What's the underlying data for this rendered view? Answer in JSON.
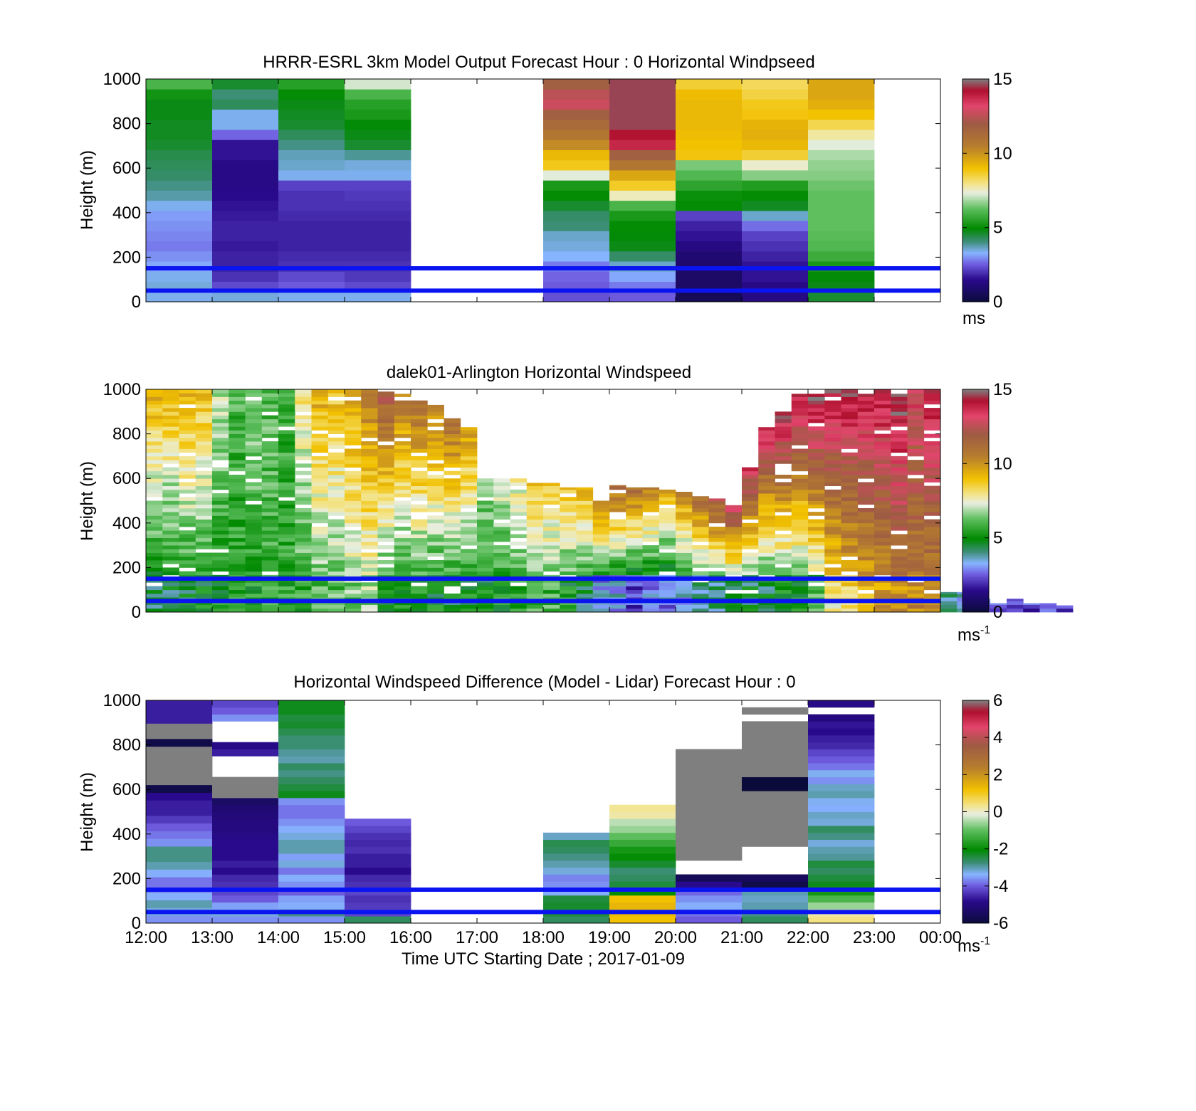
{
  "figure": {
    "xlabel": "Time UTC  Starting Date ; 2017-01-09",
    "x_tick_labels": [
      "12:00",
      "13:00",
      "14:00",
      "15:00",
      "16:00",
      "17:00",
      "18:00",
      "19:00",
      "20:00",
      "21:00",
      "22:00",
      "23:00",
      "00:00"
    ]
  },
  "colors": {
    "reference_lines": "#0a14f0",
    "colormap_stops": [
      {
        "f": 0.0,
        "c": "#0b0b3b"
      },
      {
        "f": 0.1,
        "c": "#2a0a8c"
      },
      {
        "f": 0.17,
        "c": "#6f5de0"
      },
      {
        "f": 0.22,
        "c": "#87b4ff"
      },
      {
        "f": 0.27,
        "c": "#3f8e7c"
      },
      {
        "f": 0.33,
        "c": "#008a00"
      },
      {
        "f": 0.42,
        "c": "#5fbf5f"
      },
      {
        "f": 0.49,
        "c": "#e8eee0"
      },
      {
        "f": 0.53,
        "c": "#f3e48a"
      },
      {
        "f": 0.6,
        "c": "#f2c100"
      },
      {
        "f": 0.7,
        "c": "#b67d2e"
      },
      {
        "f": 0.8,
        "c": "#9e5b44"
      },
      {
        "f": 0.88,
        "c": "#e2456c"
      },
      {
        "f": 0.95,
        "c": "#b0102e"
      },
      {
        "f": 1.0,
        "c": "#7f7f7f"
      }
    ]
  },
  "chart_data": [
    {
      "type": "heatmap",
      "title": "HRRR-ESRL 3km Model Output   Forecast Hour : 0 Horizontal Windpseed",
      "xlabel": "",
      "ylabel": "Height (m)",
      "x_range": [
        "12:00",
        "00:00"
      ],
      "ylim": [
        0,
        1000
      ],
      "y_ticks": [
        0,
        200,
        400,
        600,
        800,
        1000
      ],
      "colorbar": {
        "range": [
          0,
          15
        ],
        "ticks": [
          0,
          5,
          10,
          15
        ],
        "unit": "ms",
        "unit_sup": ""
      },
      "reference_lines_m": [
        150,
        50
      ],
      "hourly_profiles": [
        {
          "start": "12:00",
          "values": [
            3.4,
            3.5,
            3.4,
            3.2,
            3.0,
            2.8,
            2.9,
            3.0,
            3.1,
            3.4,
            3.8,
            4.0,
            4.2,
            4.3,
            4.4,
            4.6,
            4.7,
            4.7,
            4.8,
            4.8,
            5.2,
            6.0
          ]
        },
        {
          "start": "13:00",
          "values": [
            3.5,
            2.3,
            2.0,
            1.8,
            1.8,
            1.7,
            1.8,
            1.8,
            1.7,
            1.6,
            1.5,
            1.4,
            1.4,
            1.4,
            1.6,
            1.6,
            2.6,
            3.4,
            3.4,
            4.3,
            4.1,
            4.6
          ]
        },
        {
          "start": "14:00",
          "values": [
            3.4,
            2.5,
            2.3,
            2.0,
            1.9,
            1.8,
            1.8,
            1.8,
            1.9,
            2.0,
            2.0,
            2.2,
            3.4,
            3.6,
            3.7,
            4.0,
            4.3,
            4.6,
            4.7,
            4.8,
            5.0,
            5.5
          ]
        },
        {
          "start": "15:00",
          "values": [
            3.4,
            2.3,
            2.1,
            2.0,
            1.9,
            1.8,
            1.8,
            1.8,
            1.9,
            2.0,
            2.1,
            2.2,
            3.4,
            3.5,
            3.9,
            4.6,
            4.8,
            4.9,
            5.3,
            5.5,
            6.0,
            7.2
          ]
        },
        null,
        null,
        {
          "start": "18:00",
          "values": [
            2.4,
            2.5,
            2.6,
            2.8,
            3.3,
            3.5,
            3.6,
            4.1,
            4.2,
            4.6,
            5.0,
            5.3,
            7.3,
            8.8,
            9.2,
            10.2,
            10.8,
            11.3,
            11.8,
            12.8,
            12.5,
            11.8
          ]
        },
        {
          "start": "19:00",
          "values": [
            2.5,
            2.8,
            3.2,
            3.6,
            4.2,
            4.8,
            4.9,
            5.0,
            5.3,
            6.0,
            7.6,
            8.7,
            9.6,
            10.8,
            11.8,
            13.8,
            14.2,
            14.6,
            14.6,
            14.6,
            14.6,
            14.6
          ]
        },
        {
          "start": "20:00",
          "values": [
            0.5,
            0.8,
            0.8,
            0.9,
            1.0,
            1.3,
            1.6,
            1.8,
            2.2,
            5.0,
            5.1,
            5.6,
            6.1,
            6.5,
            8.9,
            9.0,
            9.1,
            9.2,
            9.2,
            9.2,
            9.1,
            8.6
          ]
        },
        {
          "start": "21:00",
          "values": [
            1.3,
            1.4,
            1.6,
            1.6,
            1.8,
            2.0,
            2.2,
            2.7,
            3.6,
            4.7,
            5.0,
            5.4,
            6.6,
            7.5,
            8.6,
            9.2,
            9.4,
            9.3,
            8.9,
            8.8,
            8.5,
            8.3
          ]
        },
        {
          "start": "22:00",
          "values": [
            4.6,
            4.8,
            4.9,
            5.3,
            5.8,
            6.1,
            6.2,
            6.3,
            6.3,
            6.3,
            6.3,
            6.4,
            6.6,
            6.7,
            6.9,
            7.3,
            7.8,
            8.4,
            9.0,
            9.4,
            9.6,
            9.6
          ]
        },
        null
      ]
    },
    {
      "type": "heatmap",
      "title": "dalek01-Arlington  Horizontal Windspeed",
      "xlabel": "",
      "ylabel": "Height (m)",
      "x_range": [
        "12:00",
        "00:00"
      ],
      "ylim": [
        0,
        1000
      ],
      "y_ticks": [
        0,
        200,
        400,
        600,
        800,
        1000
      ],
      "colorbar": {
        "range": [
          0,
          15
        ],
        "ticks": [
          0,
          5,
          10,
          15
        ],
        "unit": "ms",
        "unit_sup": "-1"
      },
      "reference_lines_m": [
        150,
        50
      ],
      "segment_minutes": 15,
      "tops_m": [
        1000,
        1000,
        1000,
        1000,
        1000,
        1000,
        1000,
        1000,
        1000,
        1000,
        1000,
        1000,
        1000,
        1000,
        990,
        980,
        950,
        930,
        870,
        830,
        600,
        600,
        600,
        580,
        580,
        560,
        560,
        500,
        570,
        560,
        560,
        560,
        540,
        520,
        510,
        480,
        650,
        830,
        900,
        980,
        980,
        1000,
        1000,
        980,
        1000,
        980,
        1000,
        1000,
        90,
        90,
        60,
        40,
        60,
        40,
        40,
        30
      ],
      "low_speed_m_s": [
        4.5,
        4.6,
        4.8,
        5.0,
        5.2,
        5.5,
        5.4,
        5.8,
        5.6,
        5.7,
        5.9,
        6.1,
        6.5,
        6.8,
        4.9,
        5.0,
        5.2,
        5.0,
        4.8,
        5.0,
        5.0,
        5.3,
        5.8,
        5.9,
        6.0,
        5.2,
        4.5,
        3.0,
        3.1,
        2.5,
        2.8,
        3.0,
        3.6,
        4.0,
        4.2,
        4.4,
        4.6,
        4.5,
        5.0,
        5.3,
        6.0,
        8.0,
        8.6,
        9.2,
        9.7,
        10.2,
        10.4,
        10.2,
        3.6,
        3.2,
        2.6,
        2.2,
        2.4,
        2.1,
        2.2,
        2.0
      ],
      "high_speed_m_s": [
        9.6,
        9.3,
        9.7,
        9.2,
        7.2,
        6.0,
        6.8,
        6.2,
        5.8,
        8.0,
        9.6,
        9.1,
        9.8,
        10.5,
        12.0,
        10.8,
        11.0,
        10.5,
        11.0,
        9.8,
        7.0,
        7.5,
        7.8,
        8.8,
        8.6,
        9.0,
        9.4,
        10.8,
        11.5,
        11.2,
        10.6,
        9.8,
        10.5,
        11.5,
        12.2,
        13.0,
        13.6,
        14.0,
        14.5,
        14.2,
        14.8,
        14.3,
        14.6,
        14.3,
        14.4,
        14.8,
        13.2,
        14.4,
        4.0,
        3.6,
        3.0,
        2.8,
        2.6,
        2.4,
        2.3,
        2.0
      ]
    },
    {
      "type": "heatmap",
      "title": "Horizontal Windspeed Difference (Model - Lidar) Forecast Hour : 0",
      "xlabel": "Time UTC  Starting Date ; 2017-01-09",
      "ylabel": "Height (m)",
      "x_range": [
        "12:00",
        "00:00"
      ],
      "ylim": [
        0,
        1000
      ],
      "y_ticks": [
        0,
        200,
        400,
        600,
        800,
        1000
      ],
      "colorbar": {
        "range": [
          -6,
          6
        ],
        "ticks": [
          -6,
          -4,
          -2,
          0,
          2,
          4,
          6
        ],
        "unit": "ms",
        "unit_sup": "-1"
      },
      "reference_lines_m": [
        150,
        50
      ],
      "hourly_profiles": [
        {
          "start": "12:00",
          "values": [
            -3.6,
            -3.2,
            -3.0,
            -3.4,
            -3.8,
            -3.8,
            -3.4,
            -3.0,
            -2.8,
            -2.8,
            -3.6,
            -3.8,
            -4.0,
            -4.3,
            -4.6,
            -4.6,
            -4.8,
            -5.8,
            6.0,
            6.0,
            6.0,
            6.0,
            6.0,
            -5.8,
            6.0,
            6.0,
            -4.6,
            -4.6,
            -4.6
          ]
        },
        {
          "start": "13:00",
          "values": [
            -3.6,
            -3.2,
            -3.5,
            -4.0,
            -4.2,
            -4.4,
            -4.5,
            -4.8,
            -4.6,
            -4.8,
            -4.8,
            -4.8,
            -4.9,
            -5.0,
            -5.0,
            -5.1,
            -5.2,
            -5.4,
            6.0,
            6.0,
            6.0,
            null,
            null,
            null,
            -4.6,
            -4.9,
            null,
            null,
            null,
            -3.6,
            -4.0,
            -4.2
          ]
        },
        {
          "start": "14:00",
          "values": [
            -3.6,
            -2.8,
            -3.4,
            -3.5,
            -4.0,
            -3.6,
            -3.4,
            -3.8,
            -3.2,
            -3.5,
            -3.0,
            -3.0,
            -3.2,
            -3.4,
            -3.6,
            -3.8,
            -3.8,
            -3.6,
            -2.2,
            -2.4,
            -2.6,
            -2.8,
            -2.6,
            -3.0,
            -2.9,
            -2.7,
            -2.7,
            -2.5,
            -2.3,
            -2.4,
            -2.2,
            -2.2
          ]
        },
        {
          "start": "15:00",
          "values": [
            -2.6,
            -4.2,
            -4.3,
            -4.4,
            -4.2,
            -4.4,
            -4.5,
            -4.8,
            -4.6,
            -4.6,
            -4.4,
            -4.5,
            -4.4,
            -4.2,
            -4.0,
            null,
            null,
            null,
            null,
            null,
            null,
            null,
            null,
            null,
            null,
            null,
            null,
            null,
            null,
            null,
            null,
            null
          ]
        },
        null,
        null,
        {
          "start": "18:00",
          "values": [
            -2.6,
            -2.4,
            -2.3,
            -2.4,
            -3.4,
            -3.6,
            -3.7,
            -3.2,
            -3.0,
            -2.8,
            -2.6,
            -2.5,
            -3.1,
            null,
            null,
            null,
            null,
            null,
            null,
            null,
            null,
            null,
            null,
            null,
            null,
            null,
            null,
            null,
            null,
            null,
            null,
            null
          ]
        },
        {
          "start": "19:00",
          "values": [
            1.2,
            1.3,
            1.4,
            1.2,
            -2.0,
            -2.4,
            -2.6,
            -2.7,
            -2.3,
            -2.0,
            -1.8,
            -1.4,
            -1.0,
            -0.6,
            -0.4,
            0.2,
            0.3,
            null,
            null,
            null,
            null,
            null,
            null,
            null,
            null,
            null,
            null,
            null,
            null,
            null,
            null,
            null
          ]
        },
        {
          "start": "20:00",
          "values": [
            -4.0,
            -3.8,
            -3.4,
            -3.6,
            -3.9,
            -4.8,
            -5.6,
            null,
            null,
            6.0,
            6.0,
            6.0,
            6.0,
            6.0,
            6.0,
            6.0,
            6.0,
            6.0,
            6.0,
            6.0,
            6.0,
            6.0,
            6.0,
            6.0,
            6.0,
            null,
            null,
            null,
            null,
            null,
            null,
            null
          ]
        },
        {
          "start": "21:00",
          "values": [
            -2.6,
            -2.8,
            -3.0,
            -3.1,
            -3.0,
            -5.8,
            -5.5,
            null,
            null,
            null,
            null,
            6.0,
            6.0,
            6.0,
            6.0,
            6.0,
            6.0,
            6.0,
            6.0,
            -6.0,
            -6.0,
            6.0,
            6.0,
            6.0,
            6.0,
            6.0,
            6.0,
            6.0,
            6.0,
            null,
            6.0,
            null
          ]
        },
        {
          "start": "22:00",
          "values": [
            0.4,
            0.2,
            -0.6,
            -1.2,
            -1.8,
            -2.2,
            -2.4,
            -2.6,
            -2.4,
            -2.9,
            -3.0,
            -3.2,
            -2.8,
            -2.6,
            -3.2,
            -3.1,
            -3.4,
            -3.3,
            -3.0,
            -3.1,
            -3.6,
            -3.3,
            -3.8,
            -4.0,
            -4.2,
            -4.5,
            -4.6,
            -4.8,
            -4.7,
            -5.0,
            null,
            -4.9
          ]
        },
        null
      ]
    }
  ]
}
